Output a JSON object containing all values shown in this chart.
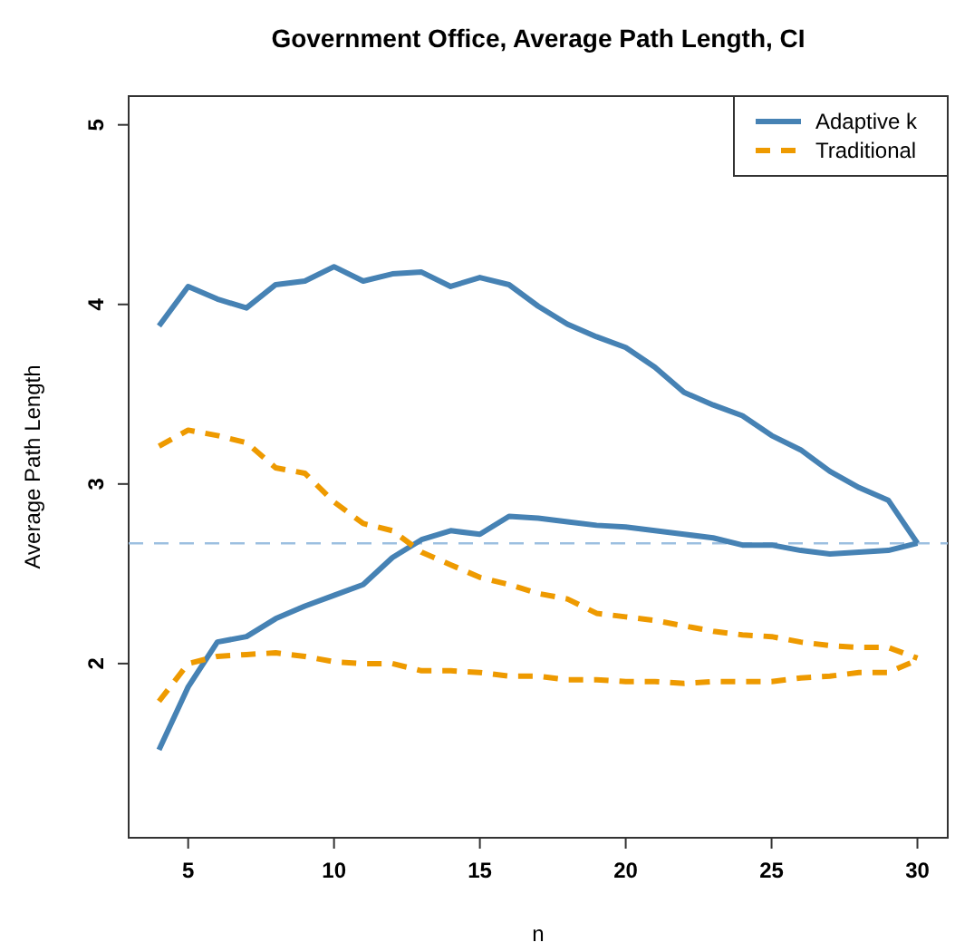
{
  "chart_data": {
    "type": "line",
    "title": "Government Office, Average Path Length, CI",
    "xlabel": "n",
    "ylabel": "Average Path Length",
    "x": [
      4,
      5,
      6,
      7,
      8,
      9,
      10,
      11,
      12,
      13,
      14,
      15,
      16,
      17,
      18,
      19,
      20,
      21,
      22,
      23,
      24,
      25,
      26,
      27,
      28,
      29,
      30
    ],
    "series": [
      {
        "name": "Adaptive k",
        "color": "#4682b4",
        "line_style": "solid",
        "values": [
          3.88,
          4.1,
          4.03,
          3.98,
          4.11,
          4.13,
          4.21,
          4.13,
          4.17,
          4.18,
          4.1,
          4.15,
          4.11,
          3.99,
          3.89,
          3.82,
          3.76,
          3.65,
          3.51,
          3.44,
          3.38,
          3.27,
          3.19,
          3.07,
          2.98,
          2.91,
          2.67
        ]
      },
      {
        "color": "#4682b4",
        "line_style": "solid",
        "values": [
          1.52,
          1.87,
          2.12,
          2.15,
          2.25,
          2.32,
          2.38,
          2.44,
          2.59,
          2.69,
          2.74,
          2.72,
          2.82,
          2.81,
          2.79,
          2.77,
          2.76,
          2.74,
          2.72,
          2.7,
          2.66,
          2.66,
          2.63,
          2.61,
          2.62,
          2.63,
          2.67
        ]
      },
      {
        "name": "Traditional",
        "color": "#ee9a00",
        "line_style": "dashed",
        "values": [
          3.21,
          3.3,
          3.27,
          3.23,
          3.09,
          3.06,
          2.9,
          2.78,
          2.74,
          2.62,
          2.55,
          2.48,
          2.44,
          2.39,
          2.36,
          2.28,
          2.26,
          2.24,
          2.21,
          2.18,
          2.16,
          2.15,
          2.12,
          2.1,
          2.09,
          2.09,
          2.03
        ]
      },
      {
        "color": "#ee9a00",
        "line_style": "dashed",
        "values": [
          1.79,
          2.0,
          2.04,
          2.05,
          2.06,
          2.04,
          2.01,
          2.0,
          2.0,
          1.96,
          1.96,
          1.95,
          1.93,
          1.93,
          1.91,
          1.91,
          1.9,
          1.9,
          1.89,
          1.9,
          1.9,
          1.9,
          1.92,
          1.93,
          1.95,
          1.95,
          2.02
        ]
      }
    ],
    "xlim": [
      2.96,
      31.04
    ],
    "xticks": [
      5,
      10,
      15,
      20,
      25,
      30
    ],
    "ylim": [
      1.03,
      5.16
    ],
    "yticks": [
      2,
      3,
      4,
      5
    ],
    "ref_lines": [
      {
        "axis": "y",
        "value": 2.67,
        "color": "#9cbfe0",
        "line_style": "dashed"
      }
    ],
    "legend": "top right",
    "grid": false,
    "marker": "none"
  }
}
